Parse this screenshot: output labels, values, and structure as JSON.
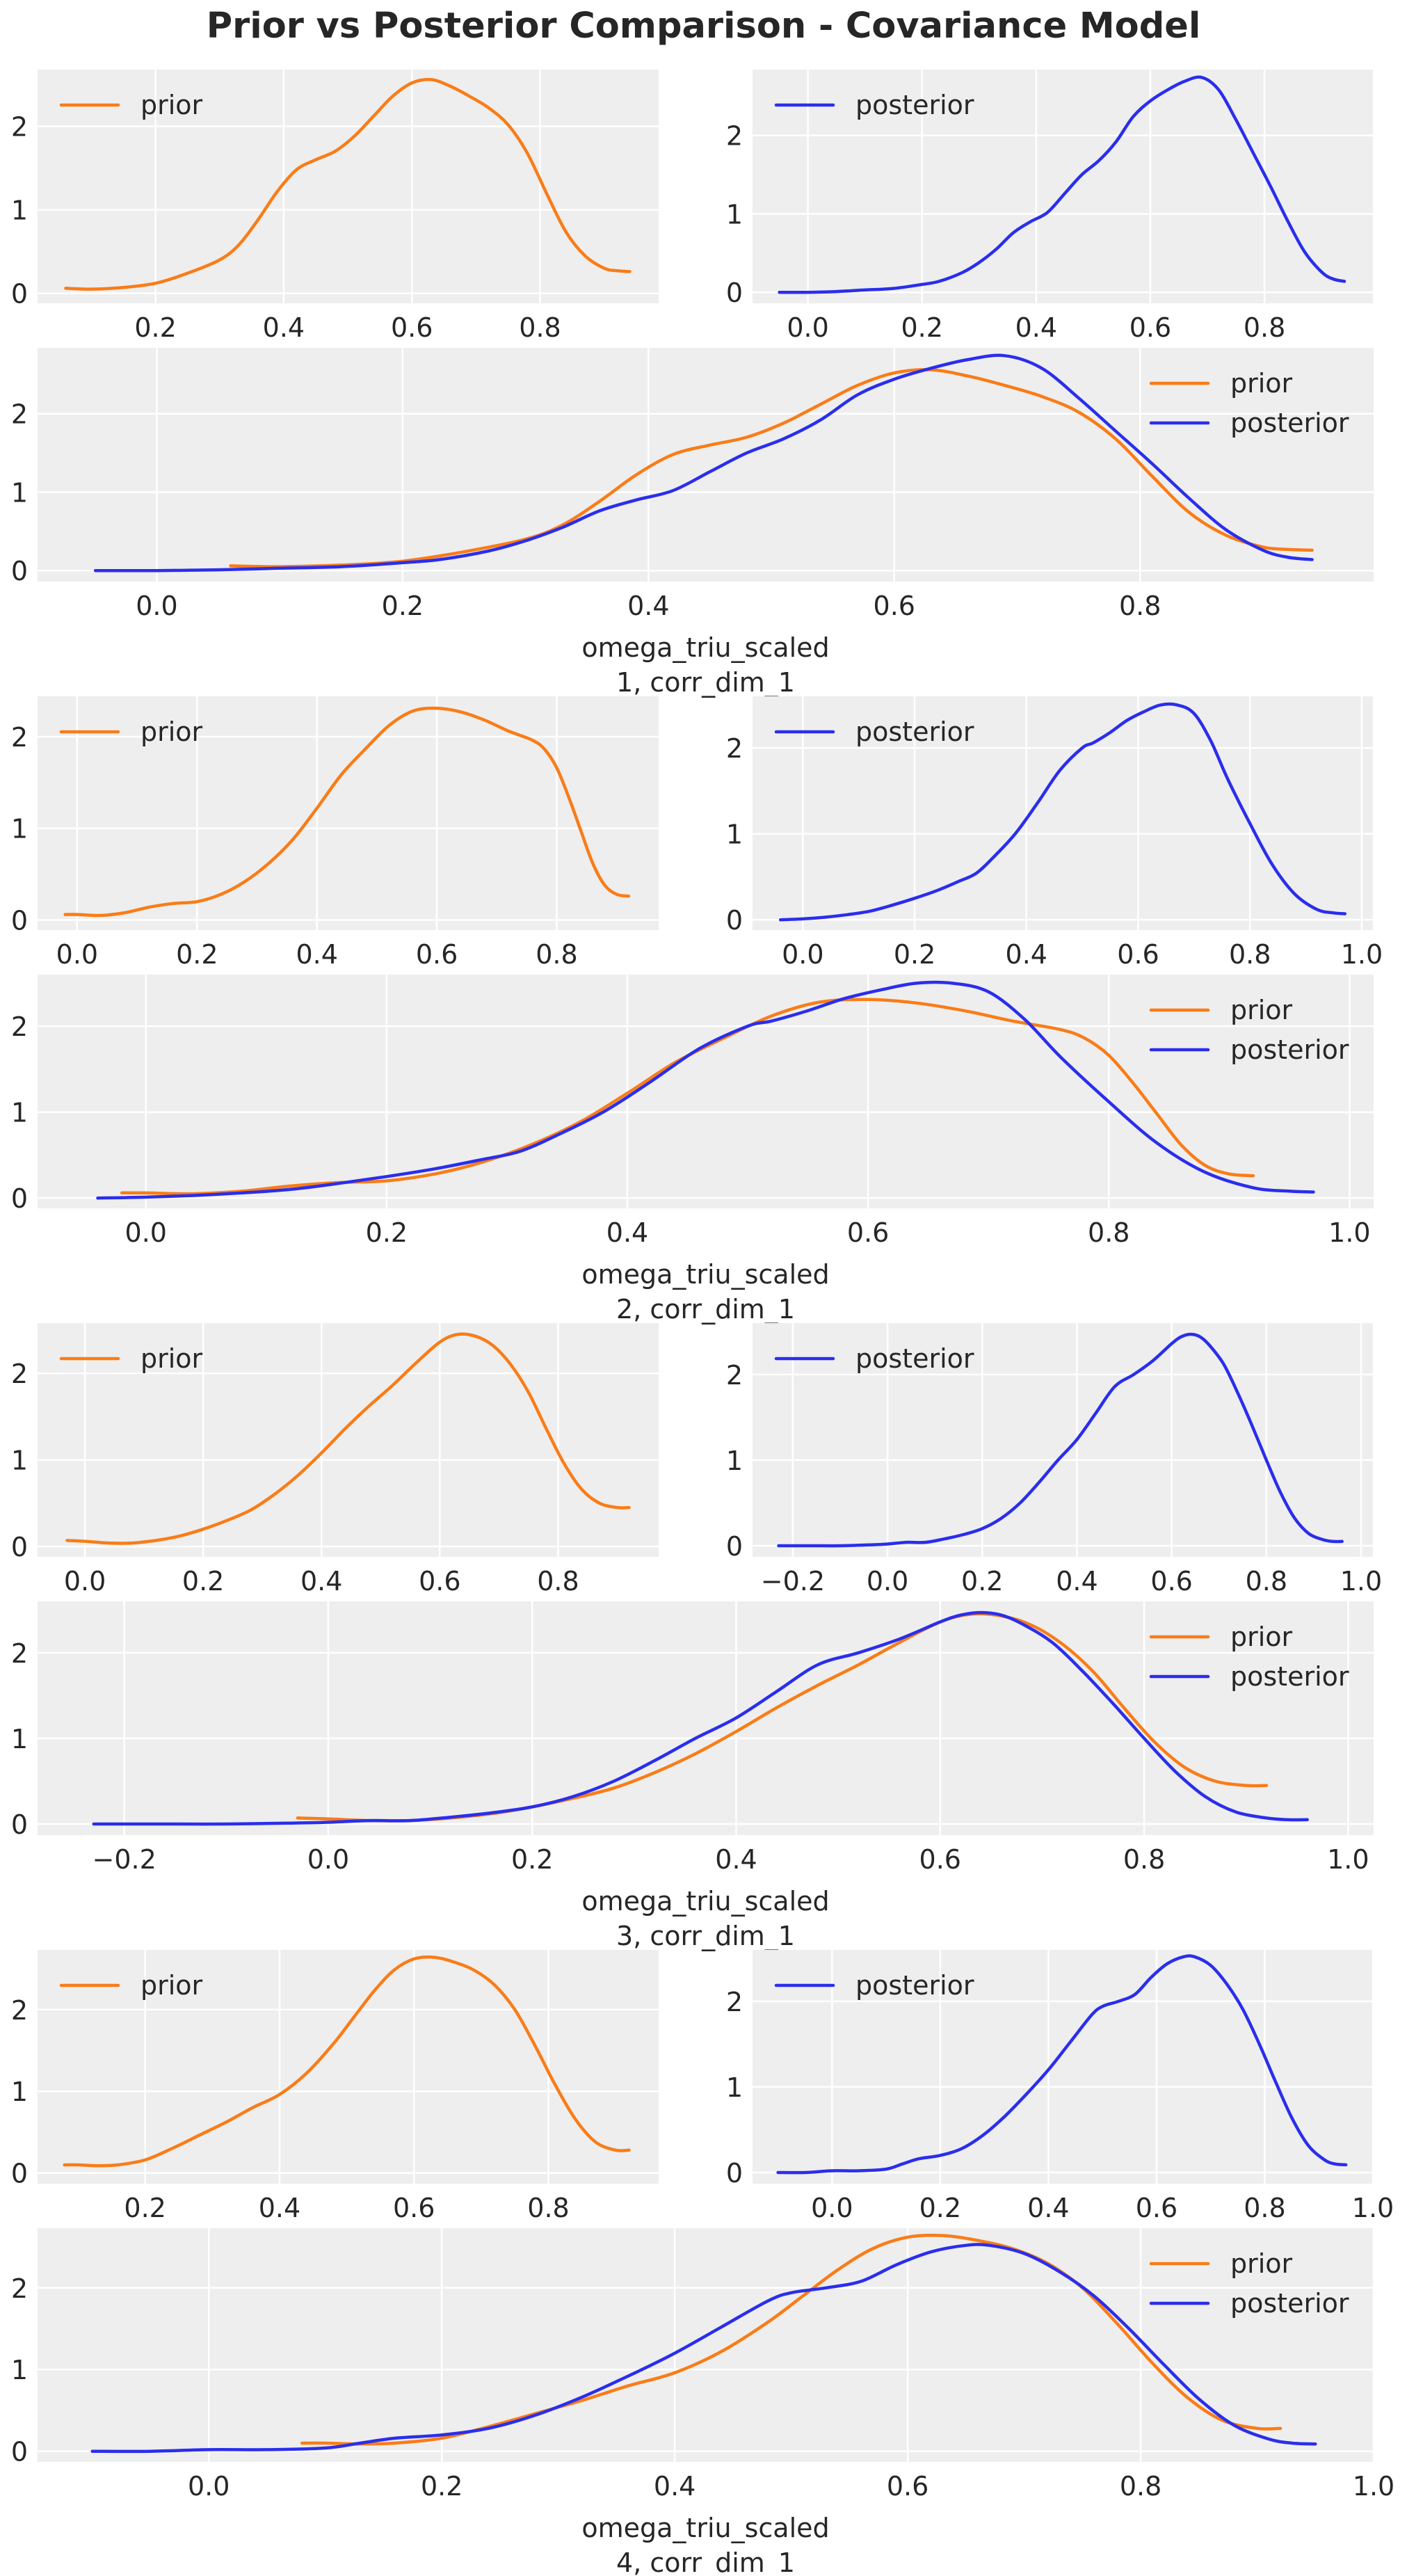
{
  "title": "Prior vs Posterior Comparison - Covariance Model",
  "colors": {
    "prior": "#fa7c17",
    "posterior": "#2a2eec",
    "panel_bg": "#eeeeee",
    "grid": "#ffffff",
    "text": "#262626"
  },
  "chart_data": {
    "type": "line",
    "title": "Prior vs Posterior Comparison - Covariance Model",
    "grid": true,
    "legend_labels": [
      "prior",
      "posterior"
    ],
    "rows": [
      {
        "xlabel": "omega_triu_scaled\n1, corr_dim_1",
        "xlabel_lines": [
          "omega_triu_scaled",
          "1, corr_dim_1"
        ],
        "panels": [
          {
            "kind": "prior",
            "legend": "upper-left",
            "xticks": [
              0.2,
              0.4,
              0.6,
              0.8
            ],
            "xtick_labels": [
              "0.2",
              "0.4",
              "0.6",
              "0.8"
            ],
            "yticks": [
              0,
              1,
              2
            ],
            "ytick_labels": [
              "0",
              "1",
              "2"
            ],
            "xlim": [
              0.016,
              0.985
            ],
            "ylim": [
              -0.12,
              2.68
            ]
          },
          {
            "kind": "posterior",
            "legend": "upper-left",
            "xticks": [
              0.0,
              0.2,
              0.4,
              0.6,
              0.8
            ],
            "xtick_labels": [
              "0.0",
              "0.2",
              "0.4",
              "0.6",
              "0.8"
            ],
            "yticks": [
              0,
              1,
              2
            ],
            "ytick_labels": [
              "0",
              "1",
              "2"
            ],
            "xlim": [
              -0.097,
              0.99
            ],
            "ylim": [
              -0.14,
              2.84
            ]
          },
          {
            "kind": "both",
            "legend": "upper-right",
            "xticks": [
              0.0,
              0.2,
              0.4,
              0.6,
              0.8
            ],
            "xtick_labels": [
              "0.0",
              "0.2",
              "0.4",
              "0.6",
              "0.8"
            ],
            "yticks": [
              0,
              1,
              2
            ],
            "ytick_labels": [
              "0",
              "1",
              "2"
            ],
            "xlim": [
              -0.097,
              0.99
            ],
            "ylim": [
              -0.14,
              2.84
            ]
          }
        ],
        "prior": {
          "x": [
            0.06,
            0.1,
            0.15,
            0.2,
            0.25,
            0.3,
            0.33,
            0.36,
            0.39,
            0.42,
            0.45,
            0.48,
            0.51,
            0.54,
            0.57,
            0.6,
            0.63,
            0.66,
            0.69,
            0.72,
            0.75,
            0.78,
            0.81,
            0.84,
            0.87,
            0.9,
            0.92,
            0.94
          ],
          "y": [
            0.06,
            0.05,
            0.07,
            0.12,
            0.24,
            0.4,
            0.58,
            0.88,
            1.22,
            1.48,
            1.6,
            1.7,
            1.88,
            2.12,
            2.36,
            2.52,
            2.56,
            2.48,
            2.36,
            2.22,
            2.02,
            1.68,
            1.2,
            0.74,
            0.45,
            0.3,
            0.27,
            0.26
          ]
        },
        "posterior": {
          "x": [
            -0.05,
            0.0,
            0.05,
            0.1,
            0.15,
            0.2,
            0.23,
            0.27,
            0.3,
            0.33,
            0.36,
            0.39,
            0.42,
            0.45,
            0.48,
            0.51,
            0.54,
            0.57,
            0.6,
            0.63,
            0.66,
            0.69,
            0.72,
            0.75,
            0.78,
            0.81,
            0.84,
            0.87,
            0.9,
            0.92,
            0.94
          ],
          "y": [
            0.0,
            0.0,
            0.01,
            0.03,
            0.05,
            0.1,
            0.14,
            0.25,
            0.38,
            0.55,
            0.76,
            0.9,
            1.02,
            1.26,
            1.5,
            1.68,
            1.92,
            2.24,
            2.44,
            2.58,
            2.69,
            2.74,
            2.58,
            2.2,
            1.78,
            1.36,
            0.92,
            0.52,
            0.26,
            0.17,
            0.14
          ]
        }
      },
      {
        "xlabel": "omega_triu_scaled\n2, corr_dim_1",
        "xlabel_lines": [
          "omega_triu_scaled",
          "2, corr_dim_1"
        ],
        "panels": [
          {
            "kind": "prior",
            "legend": "upper-left",
            "xticks": [
              0.0,
              0.2,
              0.4,
              0.6,
              0.8
            ],
            "xtick_labels": [
              "0.0",
              "0.2",
              "0.4",
              "0.6",
              "0.8"
            ],
            "yticks": [
              0,
              1,
              2
            ],
            "ytick_labels": [
              "0",
              "1",
              "2"
            ],
            "xlim": [
              -0.066,
              0.97
            ],
            "ylim": [
              -0.11,
              2.44
            ]
          },
          {
            "kind": "posterior",
            "legend": "upper-left",
            "xticks": [
              0.0,
              0.2,
              0.4,
              0.6,
              0.8,
              1.0
            ],
            "xtick_labels": [
              "0.0",
              "0.2",
              "0.4",
              "0.6",
              "0.8",
              "1.0"
            ],
            "yticks": [
              0,
              1,
              2
            ],
            "ytick_labels": [
              "0",
              "1",
              "2"
            ],
            "xlim": [
              -0.09,
              1.02
            ],
            "ylim": [
              -0.12,
              2.6
            ]
          },
          {
            "kind": "both",
            "legend": "upper-right",
            "xticks": [
              0.0,
              0.2,
              0.4,
              0.6,
              0.8,
              1.0
            ],
            "xtick_labels": [
              "0.0",
              "0.2",
              "0.4",
              "0.6",
              "0.8",
              "1.0"
            ],
            "yticks": [
              0,
              1,
              2
            ],
            "ytick_labels": [
              "0",
              "1",
              "2"
            ],
            "xlim": [
              -0.09,
              1.02
            ],
            "ylim": [
              -0.12,
              2.6
            ]
          }
        ],
        "prior": {
          "x": [
            -0.02,
            0.0,
            0.04,
            0.08,
            0.12,
            0.16,
            0.2,
            0.24,
            0.28,
            0.32,
            0.36,
            0.4,
            0.44,
            0.48,
            0.52,
            0.56,
            0.6,
            0.64,
            0.68,
            0.72,
            0.76,
            0.78,
            0.8,
            0.82,
            0.84,
            0.86,
            0.88,
            0.9,
            0.92
          ],
          "y": [
            0.06,
            0.06,
            0.05,
            0.08,
            0.14,
            0.18,
            0.2,
            0.28,
            0.42,
            0.62,
            0.88,
            1.22,
            1.58,
            1.86,
            2.12,
            2.28,
            2.31,
            2.27,
            2.18,
            2.06,
            1.96,
            1.86,
            1.66,
            1.34,
            0.98,
            0.62,
            0.38,
            0.28,
            0.26
          ]
        },
        "posterior": {
          "x": [
            -0.04,
            0.0,
            0.04,
            0.08,
            0.12,
            0.16,
            0.2,
            0.24,
            0.28,
            0.31,
            0.34,
            0.38,
            0.42,
            0.46,
            0.5,
            0.52,
            0.55,
            0.58,
            0.61,
            0.64,
            0.67,
            0.7,
            0.73,
            0.76,
            0.8,
            0.84,
            0.88,
            0.92,
            0.95,
            0.97
          ],
          "y": [
            0.0,
            0.01,
            0.03,
            0.06,
            0.1,
            0.17,
            0.25,
            0.34,
            0.45,
            0.54,
            0.72,
            1.0,
            1.36,
            1.74,
            2.0,
            2.06,
            2.18,
            2.32,
            2.42,
            2.5,
            2.5,
            2.4,
            2.08,
            1.64,
            1.12,
            0.64,
            0.3,
            0.12,
            0.08,
            0.07
          ]
        }
      },
      {
        "xlabel": "omega_triu_scaled\n3, corr_dim_1",
        "xlabel_lines": [
          "omega_triu_scaled",
          "3, corr_dim_1"
        ],
        "panels": [
          {
            "kind": "prior",
            "legend": "upper-left",
            "xticks": [
              0.0,
              0.2,
              0.4,
              0.6,
              0.8
            ],
            "xtick_labels": [
              "0.0",
              "0.2",
              "0.4",
              "0.6",
              "0.8"
            ],
            "yticks": [
              0,
              1,
              2
            ],
            "ytick_labels": [
              "0",
              "1",
              "2"
            ],
            "xlim": [
              -0.08,
              0.97
            ],
            "ylim": [
              -0.12,
              2.58
            ]
          },
          {
            "kind": "posterior",
            "legend": "upper-left",
            "xticks": [
              -0.2,
              0.0,
              0.2,
              0.4,
              0.6,
              0.8,
              1.0
            ],
            "xtick_labels": [
              "−0.2",
              "0.0",
              "0.2",
              "0.4",
              "0.6",
              "0.8",
              "1.0"
            ],
            "yticks": [
              0,
              1,
              2
            ],
            "ytick_labels": [
              "0",
              "1",
              "2"
            ],
            "xlim": [
              -0.285,
              1.025
            ],
            "ylim": [
              -0.13,
              2.6
            ]
          },
          {
            "kind": "both",
            "legend": "upper-right",
            "xticks": [
              -0.2,
              0.0,
              0.2,
              0.4,
              0.6,
              0.8,
              1.0
            ],
            "xtick_labels": [
              "−0.2",
              "0.0",
              "0.2",
              "0.4",
              "0.6",
              "0.8",
              "1.0"
            ],
            "yticks": [
              0,
              1,
              2
            ],
            "ytick_labels": [
              "0",
              "1",
              "2"
            ],
            "xlim": [
              -0.285,
              1.025
            ],
            "ylim": [
              -0.13,
              2.6
            ]
          }
        ],
        "prior": {
          "x": [
            -0.03,
            0.0,
            0.04,
            0.08,
            0.12,
            0.16,
            0.2,
            0.24,
            0.28,
            0.32,
            0.36,
            0.4,
            0.44,
            0.48,
            0.52,
            0.56,
            0.6,
            0.63,
            0.66,
            0.69,
            0.72,
            0.75,
            0.78,
            0.81,
            0.84,
            0.87,
            0.9,
            0.92
          ],
          "y": [
            0.07,
            0.06,
            0.04,
            0.04,
            0.07,
            0.12,
            0.2,
            0.3,
            0.42,
            0.6,
            0.82,
            1.08,
            1.36,
            1.62,
            1.86,
            2.12,
            2.36,
            2.45,
            2.43,
            2.32,
            2.1,
            1.78,
            1.36,
            0.96,
            0.66,
            0.5,
            0.45,
            0.45
          ]
        },
        "posterior": {
          "x": [
            -0.23,
            -0.16,
            -0.1,
            -0.04,
            0.0,
            0.04,
            0.08,
            0.12,
            0.16,
            0.2,
            0.24,
            0.28,
            0.32,
            0.36,
            0.4,
            0.44,
            0.48,
            0.52,
            0.56,
            0.6,
            0.62,
            0.64,
            0.66,
            0.68,
            0.71,
            0.74,
            0.77,
            0.8,
            0.83,
            0.86,
            0.89,
            0.92,
            0.94,
            0.96
          ],
          "y": [
            0.0,
            0.0,
            0.0,
            0.01,
            0.02,
            0.04,
            0.04,
            0.08,
            0.13,
            0.2,
            0.32,
            0.5,
            0.74,
            1.0,
            1.24,
            1.55,
            1.86,
            2.0,
            2.16,
            2.36,
            2.44,
            2.47,
            2.44,
            2.34,
            2.12,
            1.78,
            1.4,
            1.0,
            0.62,
            0.32,
            0.14,
            0.07,
            0.05,
            0.05
          ]
        }
      },
      {
        "xlabel": "omega_triu_scaled\n4, corr_dim_1",
        "xlabel_lines": [
          "omega_triu_scaled",
          "4, corr_dim_1"
        ],
        "panels": [
          {
            "kind": "prior",
            "legend": "upper-left",
            "xticks": [
              0.2,
              0.4,
              0.6,
              0.8
            ],
            "xtick_labels": [
              "0.2",
              "0.4",
              "0.6",
              "0.8"
            ],
            "yticks": [
              0,
              1,
              2
            ],
            "ytick_labels": [
              "0",
              "1",
              "2"
            ],
            "xlim": [
              0.04,
              0.964
            ],
            "ylim": [
              -0.13,
              2.73
            ]
          },
          {
            "kind": "posterior",
            "legend": "upper-left",
            "xticks": [
              0.0,
              0.2,
              0.4,
              0.6,
              0.8,
              1.0
            ],
            "xtick_labels": [
              "0.0",
              "0.2",
              "0.4",
              "0.6",
              "0.8",
              "1.0"
            ],
            "yticks": [
              0,
              1,
              2
            ],
            "ytick_labels": [
              "0",
              "1",
              "2"
            ],
            "xlim": [
              -0.147,
              1.0
            ],
            "ylim": [
              -0.13,
              2.6
            ]
          },
          {
            "kind": "both",
            "legend": "upper-right",
            "xticks": [
              0.0,
              0.2,
              0.4,
              0.6,
              0.8,
              1.0
            ],
            "xtick_labels": [
              "0.0",
              "0.2",
              "0.4",
              "0.6",
              "0.8",
              "1.0"
            ],
            "yticks": [
              0,
              1,
              2
            ],
            "ytick_labels": [
              "0",
              "1",
              "2"
            ],
            "xlim": [
              -0.147,
              1.0
            ],
            "ylim": [
              -0.13,
              2.73
            ]
          }
        ],
        "prior": {
          "x": [
            0.08,
            0.1,
            0.13,
            0.16,
            0.2,
            0.24,
            0.28,
            0.32,
            0.36,
            0.4,
            0.44,
            0.48,
            0.51,
            0.54,
            0.57,
            0.6,
            0.63,
            0.66,
            0.69,
            0.72,
            0.75,
            0.78,
            0.81,
            0.84,
            0.87,
            0.9,
            0.92
          ],
          "y": [
            0.1,
            0.1,
            0.09,
            0.1,
            0.16,
            0.3,
            0.46,
            0.62,
            0.8,
            0.96,
            1.22,
            1.58,
            1.9,
            2.22,
            2.48,
            2.62,
            2.64,
            2.58,
            2.48,
            2.3,
            2.0,
            1.56,
            1.08,
            0.66,
            0.38,
            0.28,
            0.28
          ]
        },
        "posterior": {
          "x": [
            -0.1,
            -0.05,
            0.0,
            0.05,
            0.1,
            0.13,
            0.16,
            0.2,
            0.24,
            0.28,
            0.32,
            0.36,
            0.4,
            0.44,
            0.48,
            0.5,
            0.53,
            0.56,
            0.59,
            0.62,
            0.65,
            0.67,
            0.7,
            0.73,
            0.76,
            0.79,
            0.82,
            0.85,
            0.88,
            0.91,
            0.93,
            0.95
          ],
          "y": [
            0.0,
            0.0,
            0.02,
            0.02,
            0.04,
            0.1,
            0.16,
            0.2,
            0.28,
            0.44,
            0.66,
            0.92,
            1.2,
            1.52,
            1.84,
            1.94,
            2.0,
            2.08,
            2.28,
            2.44,
            2.52,
            2.52,
            2.42,
            2.2,
            1.9,
            1.5,
            1.06,
            0.64,
            0.32,
            0.15,
            0.1,
            0.09
          ]
        }
      }
    ]
  }
}
